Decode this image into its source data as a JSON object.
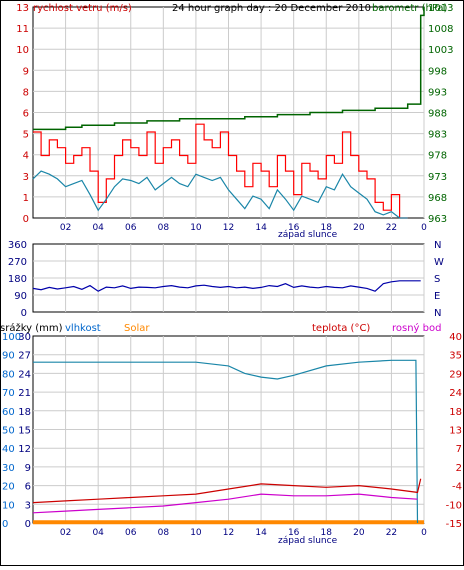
{
  "page": {
    "title": "24 hour graph day : 20 December 2010",
    "x_hours": [
      "02",
      "04",
      "06",
      "08",
      "10",
      "12",
      "14",
      "16",
      "18",
      "20",
      "22",
      "0"
    ],
    "x_caption": "západ slunce"
  },
  "colors": {
    "wind": "#ff0000",
    "wind_avg": "#1a86a8",
    "barometer": "#006400",
    "direction": "#0000aa",
    "precip": "#0066cc",
    "humidity": "#1a86a8",
    "solar": "#ff8800",
    "temperature": "#cc0000",
    "dew": "#cc00cc",
    "grid": "#cccccc",
    "axis_left": "#cc0000",
    "axis_blue": "#0066cc"
  },
  "chart_data": [
    {
      "type": "line",
      "title": "24 hour graph day : 20 December 2010",
      "left_label": "rychlost vetru (m/s)",
      "right_label": "barometr (hPa)",
      "left_ticks": [
        "0",
        "1",
        "3",
        "4",
        "5",
        "6",
        "8",
        "9",
        "10",
        "11",
        "13"
      ],
      "right_ticks": [
        "963",
        "968",
        "973",
        "978",
        "983",
        "988",
        "993",
        "998",
        "1003",
        "1008",
        "1013"
      ],
      "xlim": [
        0,
        24
      ],
      "ylim": [
        0,
        13.5
      ],
      "ylim_right": [
        963,
        1013
      ],
      "series": [
        {
          "key": "gust",
          "x": [
            0,
            0.5,
            1,
            1.5,
            2,
            2.5,
            3,
            3.5,
            4,
            4.5,
            5,
            5.5,
            6,
            6.5,
            7,
            7.5,
            8,
            8.5,
            9,
            9.5,
            10,
            10.5,
            11,
            11.5,
            12,
            12.5,
            13,
            13.5,
            14,
            14.5,
            15,
            15.5,
            16,
            16.5,
            17,
            17.5,
            18,
            18.5,
            19,
            19.5,
            20,
            20.5,
            21,
            21.5,
            22,
            22.5,
            23
          ],
          "values": [
            5.5,
            4,
            5,
            4.5,
            3.5,
            4,
            4.5,
            3,
            1,
            2.5,
            4,
            5,
            4.5,
            4,
            5.5,
            3.5,
            4.5,
            5,
            4,
            3.5,
            6,
            5,
            4.5,
            5.5,
            4,
            3,
            2,
            3.5,
            3,
            2,
            4,
            3,
            1.5,
            3.5,
            3,
            2.5,
            4,
            3.5,
            5.5,
            4,
            3,
            2.5,
            1,
            0.5,
            1.5,
            0,
            0
          ]
        },
        {
          "key": "avg",
          "x": [
            0,
            0.5,
            1,
            1.5,
            2,
            2.5,
            3,
            3.5,
            4,
            4.5,
            5,
            5.5,
            6,
            6.5,
            7,
            7.5,
            8,
            8.5,
            9,
            9.5,
            10,
            10.5,
            11,
            11.5,
            12,
            12.5,
            13,
            13.5,
            14,
            14.5,
            15,
            15.5,
            16,
            16.5,
            17,
            17.5,
            18,
            18.5,
            19,
            19.5,
            20,
            20.5,
            21,
            21.5,
            22,
            22.5,
            23
          ],
          "values": [
            2.5,
            3,
            2.8,
            2.5,
            2,
            2.2,
            2.4,
            1.5,
            0.5,
            1.2,
            2,
            2.5,
            2.4,
            2.2,
            2.6,
            1.8,
            2.2,
            2.6,
            2.2,
            2,
            2.8,
            2.6,
            2.4,
            2.6,
            1.8,
            1.2,
            0.6,
            1.4,
            1.2,
            0.6,
            1.8,
            1.2,
            0.5,
            1.4,
            1.2,
            1,
            2,
            1.8,
            2.8,
            2,
            1.6,
            1.2,
            0.4,
            0.2,
            0.4,
            0,
            0
          ]
        },
        {
          "key": "baro",
          "x": [
            0,
            1,
            2,
            3,
            4,
            5,
            6,
            7,
            8,
            9,
            10,
            11,
            12,
            13,
            14,
            15,
            16,
            17,
            18,
            19,
            20,
            21,
            22,
            23,
            23.6,
            23.8,
            24
          ],
          "values": [
            984,
            984,
            984.5,
            985,
            985,
            985.5,
            985.5,
            986,
            986,
            986.5,
            986.5,
            986.5,
            986.5,
            987,
            987,
            987.5,
            987.5,
            988,
            988,
            988.5,
            988.5,
            989,
            989,
            990,
            990,
            1011,
            1013
          ]
        }
      ]
    },
    {
      "type": "line",
      "left_ticks": [
        "360",
        "270",
        "180",
        "90",
        "0"
      ],
      "right_ticks": [
        "N",
        "W",
        "S",
        "E",
        "N"
      ],
      "xlim": [
        0,
        24
      ],
      "ylim": [
        0,
        360
      ],
      "series": [
        {
          "key": "dir",
          "x": [
            0,
            0.5,
            1,
            1.5,
            2,
            2.5,
            3,
            3.5,
            4,
            4.5,
            5,
            5.5,
            6,
            6.5,
            7,
            7.5,
            8,
            8.5,
            9,
            9.5,
            10,
            10.5,
            11,
            11.5,
            12,
            12.5,
            13,
            13.5,
            14,
            14.5,
            15,
            15.5,
            16,
            16.5,
            17,
            17.5,
            18,
            18.5,
            19,
            19.5,
            20,
            20.5,
            21,
            21.5,
            22,
            22.5,
            23,
            23.5,
            23.8
          ],
          "values": [
            125,
            118,
            130,
            122,
            128,
            135,
            120,
            140,
            110,
            132,
            128,
            138,
            125,
            132,
            130,
            128,
            135,
            140,
            132,
            128,
            138,
            142,
            135,
            130,
            135,
            128,
            132,
            125,
            130,
            140,
            135,
            150,
            130,
            138,
            132,
            128,
            135,
            130,
            128,
            138,
            132,
            125,
            110,
            150,
            160,
            165,
            165,
            165,
            165
          ]
        }
      ]
    },
    {
      "type": "line",
      "legend": [
        "srážky (mm)",
        "vlhkost",
        "Solar",
        "teplota (°C)",
        "rosný bod"
      ],
      "precip_ticks": [
        "100",
        "90",
        "80",
        "70",
        "60",
        "50",
        "40",
        "30",
        "20",
        "10",
        "0"
      ],
      "humidity_ticks": [
        "30",
        "27",
        "24",
        "21",
        "18",
        "15",
        "12",
        "9",
        "6",
        "3",
        "0"
      ],
      "temp_ticks": [
        "40",
        "35",
        "29",
        "24",
        "18",
        "13",
        "7",
        "2",
        "-4",
        "-10",
        "-15"
      ],
      "xlim": [
        0,
        24
      ],
      "ylim": [
        0,
        100
      ],
      "ylim_temp": [
        -15,
        40
      ],
      "series": [
        {
          "key": "humidity",
          "x": [
            0,
            2,
            4,
            6,
            8,
            10,
            12,
            13,
            14,
            15,
            16,
            18,
            20,
            22,
            23.5,
            23.6
          ],
          "values": [
            86,
            86,
            86,
            86,
            86,
            86,
            84,
            80,
            78,
            77,
            79,
            84,
            86,
            87,
            87,
            0
          ]
        },
        {
          "key": "solar",
          "x": [
            0,
            24
          ],
          "values": [
            0.4,
            0.4
          ]
        },
        {
          "key": "temp",
          "x": [
            0,
            2,
            4,
            6,
            8,
            10,
            12,
            14,
            16,
            18,
            20,
            22,
            23.6,
            23.8
          ],
          "values": [
            -9,
            -8.5,
            -8,
            -7.5,
            -7,
            -6.5,
            -5,
            -3.5,
            -4,
            -4.5,
            -4,
            -5,
            -6,
            -2
          ]
        },
        {
          "key": "dew",
          "x": [
            0,
            2,
            4,
            6,
            8,
            10,
            12,
            14,
            16,
            18,
            20,
            22,
            23.6
          ],
          "values": [
            -12,
            -11.5,
            -11,
            -10.5,
            -10,
            -9,
            -8,
            -6.5,
            -7,
            -7,
            -6.5,
            -7.5,
            -8
          ]
        }
      ]
    }
  ]
}
